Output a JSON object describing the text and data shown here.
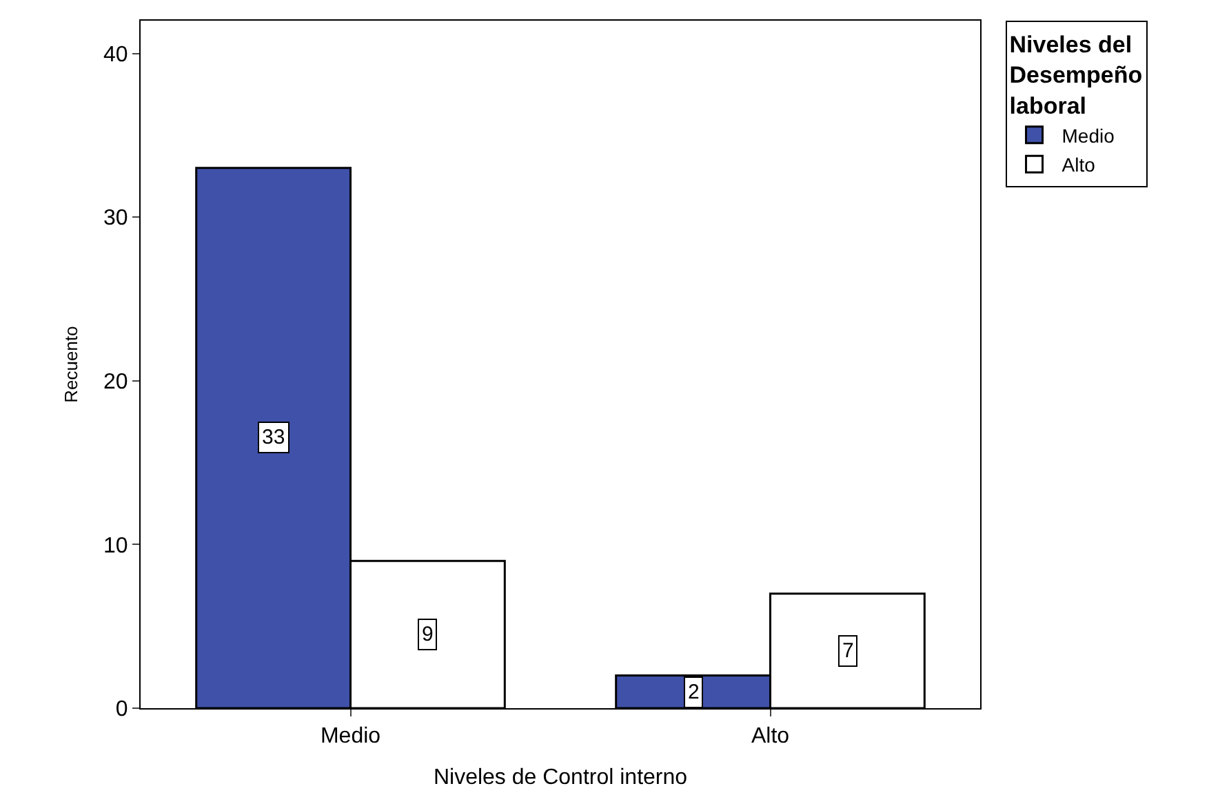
{
  "chart_data": {
    "type": "bar",
    "xlabel": "Niveles de Control interno",
    "ylabel": "Recuento",
    "legend_title": "Niveles del Desempeño laboral",
    "categories": [
      "Medio",
      "Alto"
    ],
    "series": [
      {
        "name": "Medio",
        "color": "#3f51a8",
        "values": [
          33,
          2
        ]
      },
      {
        "name": "Alto",
        "color": "#ffffff",
        "values": [
          9,
          7
        ]
      }
    ],
    "ylim": [
      0,
      42
    ],
    "yticks": [
      0,
      10,
      20,
      30,
      40
    ],
    "legend": "top right",
    "data_labels": true
  }
}
